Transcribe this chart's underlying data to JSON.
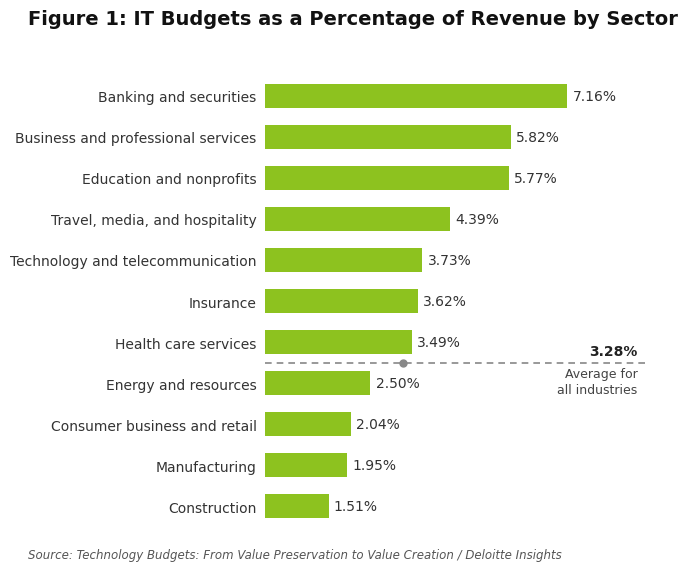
{
  "title": "Figure 1: IT Budgets as a Percentage of Revenue by Sector",
  "categories": [
    "Banking and securities",
    "Business and professional services",
    "Education and nonprofits",
    "Travel, media, and hospitality",
    "Technology and telecommunication",
    "Insurance",
    "Health care services",
    "Energy and resources",
    "Consumer business and retail",
    "Manufacturing",
    "Construction"
  ],
  "values": [
    7.16,
    5.82,
    5.77,
    4.39,
    3.73,
    3.62,
    3.49,
    2.5,
    2.04,
    1.95,
    1.51
  ],
  "bar_color": "#8dc21f",
  "average_value": 3.28,
  "average_label_bold": "3.28%",
  "average_label_sub": "Average for\nall industries",
  "source_text": "Source: Technology Budgets: From Value Preservation to Value Creation / Deloitte Insights",
  "title_fontsize": 14,
  "label_fontsize": 10,
  "value_fontsize": 10,
  "source_fontsize": 8.5,
  "background_color": "#ffffff",
  "xlim": [
    0,
    9.0
  ],
  "bar_height": 0.58
}
